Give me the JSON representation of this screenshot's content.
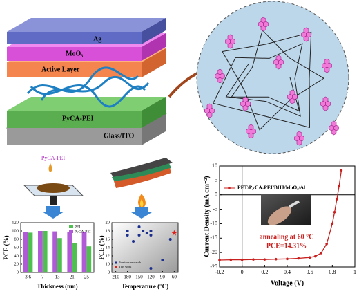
{
  "schematic": {
    "layers": [
      "Ag",
      "MoO₃",
      "Active Layer",
      "PyCA-PEI",
      "Glass/ITO"
    ]
  },
  "process_label": "PyCA-PEI",
  "chart_data": [
    {
      "type": "bar",
      "xlabel": "Thickness (nm)",
      "ylabel": "PCE (%)",
      "categories": [
        "3.6",
        "7",
        "13",
        "21",
        "25"
      ],
      "series": [
        {
          "name": "PEI",
          "color": "#4fbf4f",
          "values": [
            96,
            100,
            83,
            70,
            63
          ]
        },
        {
          "name": "PyCA-PEI",
          "color": "#b05ad8",
          "values": [
            97,
            100,
            99,
            97,
            97
          ]
        }
      ],
      "ylim": [
        0,
        120
      ],
      "yticks": [
        0,
        20,
        40,
        60,
        80,
        100,
        120
      ]
    },
    {
      "type": "scatter",
      "xlabel": "Temperature (°C)",
      "ylabel": "PCE (%)",
      "series": [
        {
          "name": "Previous research",
          "color": "#1c2f8f",
          "x": [
            180,
            180,
            150,
            150,
            140,
            130,
            120,
            120,
            165,
            120,
            90,
            70
          ],
          "values": [
            18,
            17,
            19,
            17,
            18,
            17.5,
            18,
            17,
            15.5,
            9,
            11,
            16
          ]
        },
        {
          "name": "This work",
          "color": "#e0201b",
          "x": [
            60
          ],
          "values": [
            17.5
          ]
        }
      ],
      "xlim": [
        220,
        50
      ],
      "xticks": [
        210,
        180,
        150,
        120,
        90,
        60
      ],
      "ylim": [
        8,
        20
      ],
      "yticks": [
        8,
        10,
        12,
        14,
        16,
        18,
        20
      ]
    },
    {
      "type": "line",
      "xlabel": "Voltage (V)",
      "ylabel": "Current Density (mA cm⁻²)",
      "x": [
        -0.2,
        -0.1,
        0.0,
        0.1,
        0.2,
        0.3,
        0.4,
        0.5,
        0.6,
        0.65,
        0.7,
        0.75,
        0.8,
        0.82,
        0.84,
        0.86,
        0.88
      ],
      "series": [
        {
          "name": "PET/PyCA:PEI/BHJ/MoO₃/Al",
          "color": "#c8201e",
          "values": [
            -22.6,
            -22.5,
            -22.5,
            -22.4,
            -22.4,
            -22.3,
            -22.2,
            -22.0,
            -21.7,
            -21.3,
            -20.2,
            -17.0,
            -10.0,
            -6.0,
            -1.5,
            3.0,
            8.5
          ]
        }
      ],
      "xlim": [
        -0.2,
        1.0
      ],
      "xticks": [
        -0.2,
        0.0,
        0.2,
        0.4,
        0.6,
        0.8,
        1.0
      ],
      "ylim": [
        -25,
        10
      ],
      "yticks": [
        -25,
        -20,
        -15,
        -10,
        -5,
        0,
        5,
        10
      ],
      "annotations": [
        "annealing at 60 °C",
        "PCE=14.31%"
      ]
    }
  ]
}
